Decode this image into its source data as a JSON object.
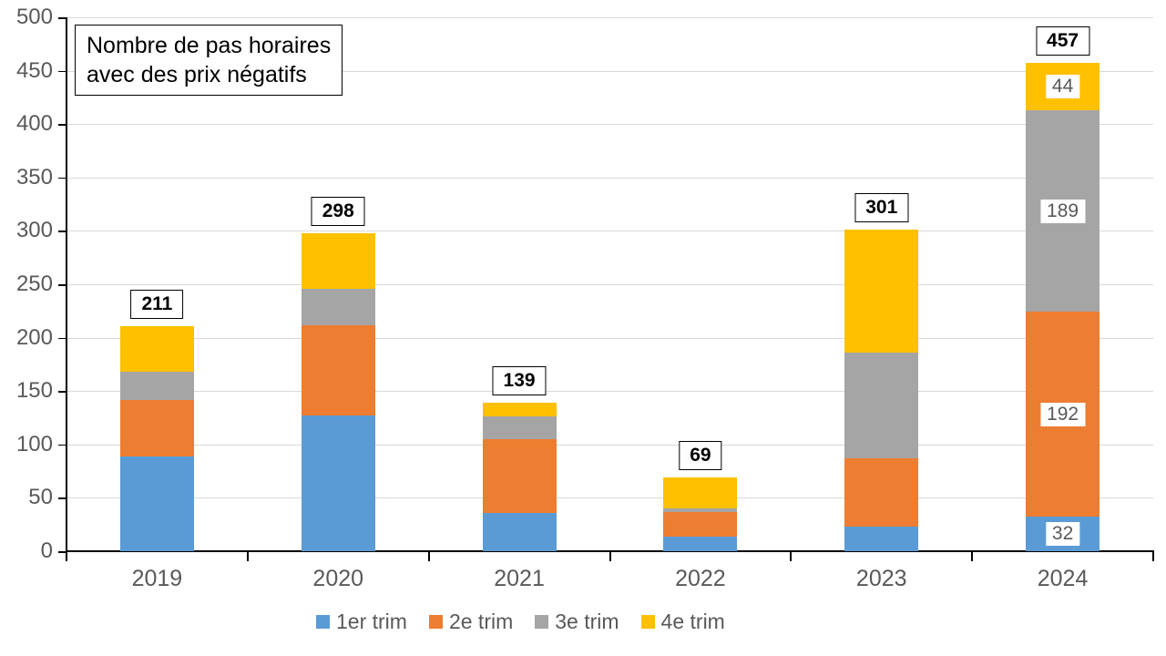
{
  "title": {
    "line1": "Nombre de pas horaires",
    "line2": "avec des prix négatifs"
  },
  "chart_data": {
    "type": "bar",
    "stacked": true,
    "title": "Nombre de pas horaires avec des prix négatifs",
    "categories": [
      "2019",
      "2020",
      "2021",
      "2022",
      "2023",
      "2024"
    ],
    "series": [
      {
        "name": "1er trim",
        "color": "#5B9BD5",
        "values": [
          89,
          127,
          36,
          14,
          23,
          32
        ]
      },
      {
        "name": "2e trim",
        "color": "#ED7D31",
        "values": [
          53,
          85,
          69,
          23,
          64,
          192
        ]
      },
      {
        "name": "3e trim",
        "color": "#A5A5A5",
        "values": [
          26,
          34,
          21,
          3,
          99,
          189
        ]
      },
      {
        "name": "4e trim",
        "color": "#FFC000",
        "values": [
          43,
          52,
          13,
          29,
          115,
          44
        ]
      }
    ],
    "totals": [
      211,
      298,
      139,
      69,
      301,
      457
    ],
    "segment_labels_category": "2024",
    "segment_labels": [
      32,
      192,
      189,
      44
    ],
    "xlabel": "",
    "ylabel": "",
    "ylim": [
      0,
      500
    ],
    "yticks": [
      0,
      50,
      100,
      150,
      200,
      250,
      300,
      350,
      400,
      450,
      500
    ],
    "grid": true,
    "legend_position": "bottom"
  },
  "colors": {
    "background": "#FFFFFF",
    "gridline": "#D9D9D9",
    "axis": "#000000",
    "tick_label": "#595959",
    "total_label_text": "#000000",
    "segment_label_text": "#595959",
    "label_box_background": "#FFFFFF"
  }
}
